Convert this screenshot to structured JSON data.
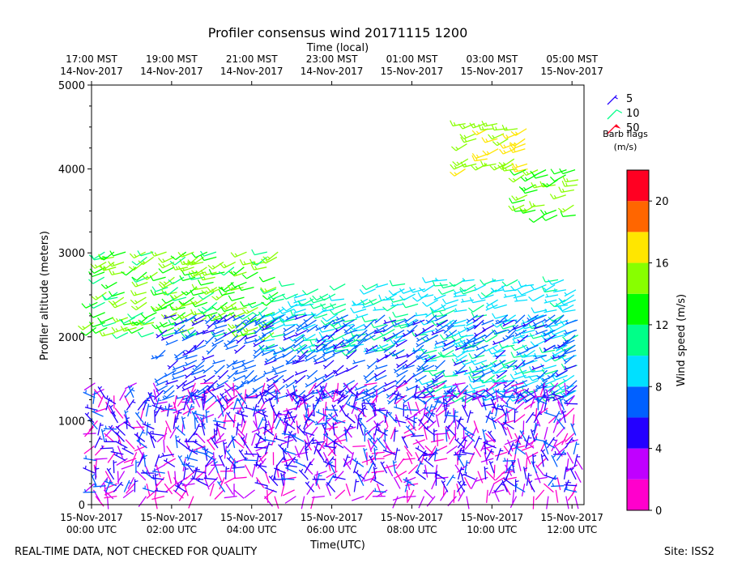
{
  "chart_data": {
    "type": "wind-barb",
    "title": "Profiler consensus wind 20171115 1200",
    "top_axis_label": "Time (local)",
    "xlabel": "Time(UTC)",
    "ylabel": "Profiler altitude (meters)",
    "xlim_hours_utc": [
      0,
      12.3
    ],
    "ylim": [
      0,
      5000
    ],
    "y_ticks": [
      0,
      1000,
      2000,
      3000,
      4000,
      5000
    ],
    "y_tick_labels": [
      "0",
      "1000",
      "2000",
      "3000",
      "4000",
      "5000"
    ],
    "bottom_ticks": [
      {
        "hour": 0,
        "line1": "15-Nov-2017",
        "line2": "00:00 UTC"
      },
      {
        "hour": 2,
        "line1": "15-Nov-2017",
        "line2": "02:00 UTC"
      },
      {
        "hour": 4,
        "line1": "15-Nov-2017",
        "line2": "04:00 UTC"
      },
      {
        "hour": 6,
        "line1": "15-Nov-2017",
        "line2": "06:00 UTC"
      },
      {
        "hour": 8,
        "line1": "15-Nov-2017",
        "line2": "08:00 UTC"
      },
      {
        "hour": 10,
        "line1": "15-Nov-2017",
        "line2": "10:00 UTC"
      },
      {
        "hour": 12,
        "line1": "15-Nov-2017",
        "line2": "12:00 UTC"
      }
    ],
    "top_ticks": [
      {
        "hour": 0,
        "line1": "17:00 MST",
        "line2": "14-Nov-2017"
      },
      {
        "hour": 2,
        "line1": "19:00 MST",
        "line2": "14-Nov-2017"
      },
      {
        "hour": 4,
        "line1": "21:00 MST",
        "line2": "14-Nov-2017"
      },
      {
        "hour": 6,
        "line1": "23:00 MST",
        "line2": "14-Nov-2017"
      },
      {
        "hour": 8,
        "line1": "01:00 MST",
        "line2": "15-Nov-2017"
      },
      {
        "hour": 10,
        "line1": "03:00 MST",
        "line2": "15-Nov-2017"
      },
      {
        "hour": 12,
        "line1": "05:00 MST",
        "line2": "15-Nov-2017"
      }
    ],
    "barb_legend": {
      "title_line1": "Barb flags",
      "title_line2": "(m/s)",
      "entries": [
        {
          "label": "5",
          "speed": 5
        },
        {
          "label": "10",
          "speed": 10
        },
        {
          "label": "50",
          "speed": 50
        }
      ]
    },
    "colorbar": {
      "label": "Wind speed (m/s)",
      "min": 0,
      "max": 22,
      "ticks": [
        0,
        4,
        8,
        12,
        16,
        20
      ],
      "tick_labels": [
        "0",
        "4",
        "8",
        "12",
        "16",
        "20"
      ],
      "bins": [
        {
          "from": 0,
          "to": 2,
          "color": "#ff00cc"
        },
        {
          "from": 2,
          "to": 4,
          "color": "#c000ff"
        },
        {
          "from": 4,
          "to": 6,
          "color": "#2400ff"
        },
        {
          "from": 6,
          "to": 8,
          "color": "#0060ff"
        },
        {
          "from": 8,
          "to": 10,
          "color": "#00e0ff"
        },
        {
          "from": 10,
          "to": 12,
          "color": "#00ff88"
        },
        {
          "from": 12,
          "to": 14,
          "color": "#00ff00"
        },
        {
          "from": 14,
          "to": 16,
          "color": "#88ff00"
        },
        {
          "from": 16,
          "to": 18,
          "color": "#ffe600"
        },
        {
          "from": 18,
          "to": 20,
          "color": "#ff6600"
        },
        {
          "from": 20,
          "to": 22,
          "color": "#ff0022"
        }
      ]
    },
    "regions": [
      {
        "name": "upper-yellow",
        "t": [
          9.2,
          11.0
        ],
        "alt": [
          4000,
          4550
        ],
        "speed": [
          15,
          17
        ],
        "dir": 250
      },
      {
        "name": "upper-green-late",
        "t": [
          10.7,
          12.3
        ],
        "alt": [
          3450,
          4000
        ],
        "speed": [
          13,
          15
        ],
        "dir": 250
      },
      {
        "name": "green-layer",
        "t": [
          0.0,
          4.8
        ],
        "alt": [
          2050,
          3050
        ],
        "speed": [
          11,
          16
        ],
        "dir": 245
      },
      {
        "name": "cyan-green-mid",
        "t": [
          4.5,
          8.5
        ],
        "alt": [
          1850,
          2650
        ],
        "speed": [
          8,
          12
        ],
        "dir": 250
      },
      {
        "name": "teal-late",
        "t": [
          8.5,
          12.3
        ],
        "alt": [
          1300,
          2700
        ],
        "speed": [
          8,
          11
        ],
        "dir": 250
      },
      {
        "name": "blue-band",
        "t": [
          1.8,
          12.3
        ],
        "alt": [
          1300,
          2300
        ],
        "speed": [
          5,
          8
        ],
        "dir": 240
      },
      {
        "name": "pink-low",
        "t": [
          0.0,
          12.3
        ],
        "alt": [
          100,
          1450
        ],
        "speed": [
          0.5,
          3.5
        ],
        "dir": 200
      },
      {
        "name": "blue-low",
        "t": [
          0.0,
          12.3
        ],
        "alt": [
          150,
          1300
        ],
        "speed": [
          4,
          7
        ],
        "dir": 330
      }
    ]
  },
  "footer": {
    "left_note": "REAL-TIME DATA, NOT CHECKED FOR QUALITY",
    "right_note": "Site: ISS2"
  }
}
